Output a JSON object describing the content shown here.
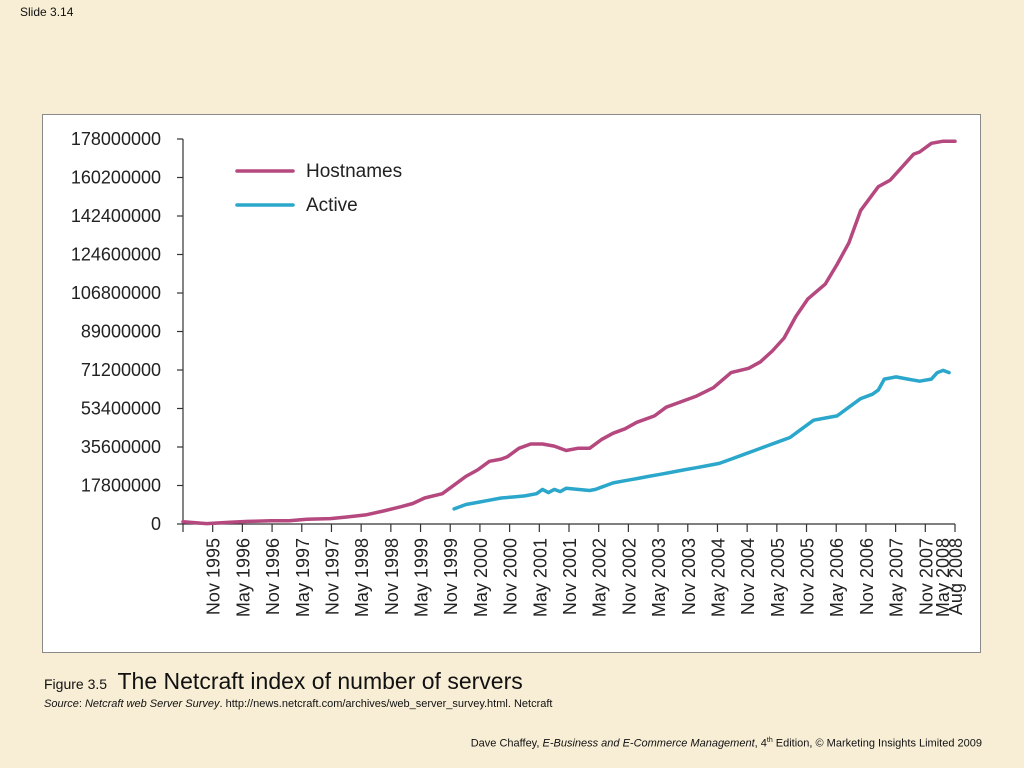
{
  "slide_number": "Slide 3.14",
  "caption": {
    "figure_label": "Figure 3.5",
    "title": "The Netcraft index of number of servers",
    "source_label": "Source",
    "source_colon": ": ",
    "source_italic": "Netcraft web Server Survey",
    "source_rest": ". http://news.netcraft.com/archives/web_server_survey.html. Netcraft"
  },
  "footer": {
    "author": "Dave Chaffey, ",
    "book": "E-Business and E-Commerce Management",
    "edition_num": ", 4",
    "edition_sup": "th",
    "rest": " Edition, © Marketing Insights Limited 2009"
  },
  "chart_data": {
    "type": "line",
    "title": "",
    "xlabel": "",
    "ylabel": "",
    "ylim": [
      0,
      178000000
    ],
    "yticks": [
      "178000000",
      "160200000",
      "142400000",
      "124600000",
      "106800000",
      "89000000",
      "71200000",
      "53400000",
      "35600000",
      "17800000",
      "0"
    ],
    "xticks": [
      "Nov 1995",
      "May 1996",
      "Nov 1996",
      "May 1997",
      "Nov 1997",
      "May 1998",
      "Nov 1998",
      "May 1999",
      "Nov 1999",
      "May 2000",
      "Nov 2000",
      "May 2001",
      "Nov 2001",
      "May 2002",
      "Nov 2002",
      "May 2003",
      "Nov 2003",
      "May 2004",
      "Nov 2004",
      "May 2005",
      "Nov 2005",
      "May 2006",
      "Nov 2006",
      "May 2007",
      "Nov 2007",
      "May 2008",
      "Aug 2008"
    ],
    "x_range": [
      1995.5,
      2008.6
    ],
    "legend_position": "top-left",
    "series": [
      {
        "name": "Hostnames",
        "color": "#b5487e",
        "x": [
          1995.5,
          1995.9,
          1996.3,
          1996.6,
          1997.0,
          1997.3,
          1997.6,
          1998.0,
          1998.3,
          1998.6,
          1998.9,
          1999.2,
          1999.4,
          1999.6,
          1999.9,
          2000.1,
          2000.3,
          2000.5,
          2000.7,
          2000.9,
          2001.0,
          2001.2,
          2001.4,
          2001.6,
          2001.8,
          2002.0,
          2002.2,
          2002.4,
          2002.6,
          2002.8,
          2003.0,
          2003.2,
          2003.5,
          2003.7,
          2003.9,
          2004.2,
          2004.5,
          2004.8,
          2005.1,
          2005.3,
          2005.5,
          2005.7,
          2005.9,
          2006.1,
          2006.4,
          2006.6,
          2006.8,
          2007.0,
          2007.3,
          2007.5,
          2007.7,
          2007.9,
          2008.0,
          2008.2,
          2008.4,
          2008.6
        ],
        "values": [
          1000000,
          200000,
          800000,
          1200000,
          1500000,
          1500000,
          2200000,
          2500000,
          3300000,
          4200000,
          6000000,
          8000000,
          9500000,
          12000000,
          14000000,
          18000000,
          22000000,
          25000000,
          29000000,
          30000000,
          31000000,
          35000000,
          37000000,
          37000000,
          36000000,
          34000000,
          35000000,
          35000000,
          39000000,
          42000000,
          44000000,
          47000000,
          50000000,
          54000000,
          56000000,
          59000000,
          63000000,
          70000000,
          72000000,
          75000000,
          80000000,
          86000000,
          96000000,
          104000000,
          111000000,
          120000000,
          130000000,
          145000000,
          156000000,
          159000000,
          165000000,
          171000000,
          172000000,
          176000000,
          177000000,
          177000000
        ]
      },
      {
        "name": "Active",
        "color": "#2ba7cc",
        "x": [
          2000.1,
          2000.3,
          2000.5,
          2000.7,
          2000.9,
          2001.1,
          2001.3,
          2001.5,
          2001.6,
          2001.7,
          2001.8,
          2001.9,
          2002.0,
          2002.2,
          2002.4,
          2002.5,
          2002.6,
          2002.8,
          2003.0,
          2003.2,
          2003.4,
          2003.6,
          2003.8,
          2004.0,
          2004.2,
          2004.4,
          2004.6,
          2004.8,
          2005.0,
          2005.2,
          2005.4,
          2005.6,
          2005.8,
          2006.0,
          2006.2,
          2006.4,
          2006.6,
          2006.8,
          2007.0,
          2007.2,
          2007.3,
          2007.4,
          2007.6,
          2007.8,
          2008.0,
          2008.2,
          2008.3,
          2008.4,
          2008.5
        ],
        "values": [
          7000000,
          9000000,
          10000000,
          11000000,
          12000000,
          12500000,
          13000000,
          14000000,
          16000000,
          14500000,
          16000000,
          15000000,
          16500000,
          16000000,
          15500000,
          16000000,
          17000000,
          19000000,
          20000000,
          21000000,
          22000000,
          23000000,
          24000000,
          25000000,
          26000000,
          27000000,
          28000000,
          30000000,
          32000000,
          34000000,
          36000000,
          38000000,
          40000000,
          44000000,
          48000000,
          49000000,
          50000000,
          54000000,
          58000000,
          60000000,
          62000000,
          67000000,
          68000000,
          67000000,
          66000000,
          67000000,
          70000000,
          71000000,
          70000000
        ]
      }
    ]
  }
}
